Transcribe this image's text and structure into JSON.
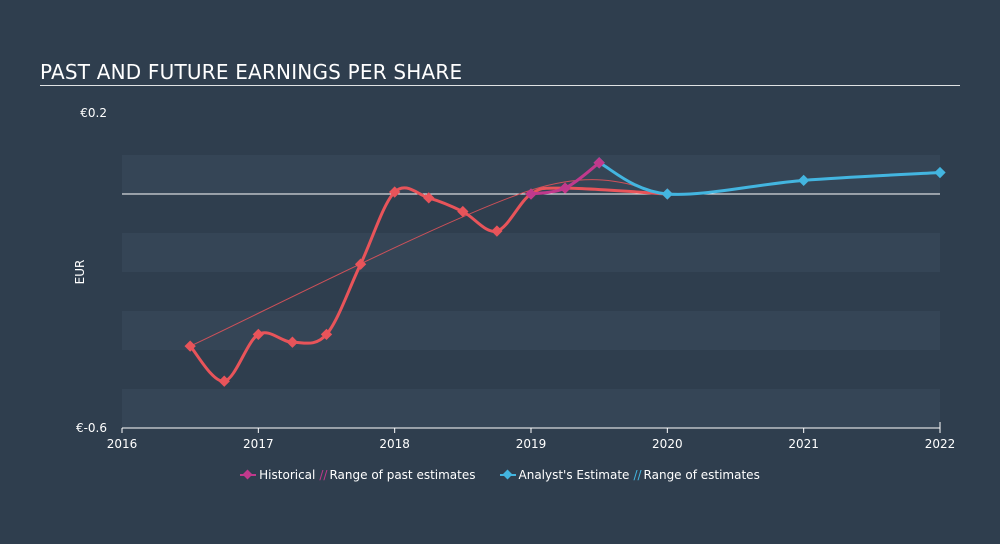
{
  "title": "PAST AND FUTURE EARNINGS PER SHARE",
  "legend": {
    "historical": "Historical",
    "past_range": "Range of past estimates",
    "analyst": "Analyst's Estimate",
    "future_range": "Range of estimates"
  },
  "colors": {
    "background": "#2f3e4e",
    "band": "#354556",
    "historical": "#c0398c",
    "past_estimate": "#e8545a",
    "analyst": "#43b5e0",
    "axis": "#ffffff"
  },
  "chart_data": {
    "type": "line",
    "ylabel": "EUR",
    "y_tick_labels": [
      "€0.2",
      "€-0.6"
    ],
    "ylim": [
      -0.6,
      0.2
    ],
    "xlim": [
      2016,
      2022
    ],
    "x_tick_labels": [
      "2016",
      "2017",
      "2018",
      "2019",
      "2020",
      "2021",
      "2022"
    ],
    "zero_line": 0.0,
    "series": [
      {
        "name": "Historical",
        "points": [
          [
            2019.0,
            0.0
          ],
          [
            2019.25,
            0.015
          ],
          [
            2019.5,
            0.08
          ]
        ]
      },
      {
        "name": "Range of past estimates",
        "points": [
          [
            2016.5,
            -0.39
          ],
          [
            2016.75,
            -0.48
          ],
          [
            2017.0,
            -0.36
          ],
          [
            2017.25,
            -0.38
          ],
          [
            2017.5,
            -0.36
          ],
          [
            2017.75,
            -0.18
          ],
          [
            2018.0,
            0.005
          ],
          [
            2018.25,
            -0.01
          ],
          [
            2018.5,
            -0.045
          ],
          [
            2018.75,
            -0.095
          ],
          [
            2019.0,
            0.0
          ],
          [
            2019.25,
            0.015
          ],
          [
            2020.0,
            0.0
          ]
        ]
      },
      {
        "name": "Analyst's Estimate",
        "points": [
          [
            2019.5,
            0.08
          ],
          [
            2020.0,
            0.0
          ],
          [
            2021.0,
            0.035
          ],
          [
            2022.0,
            0.055
          ]
        ]
      }
    ],
    "past_range_line": [
      [
        2016.5,
        -0.39
      ],
      [
        2019.0,
        0.01
      ],
      [
        2020.0,
        0.0
      ]
    ]
  }
}
